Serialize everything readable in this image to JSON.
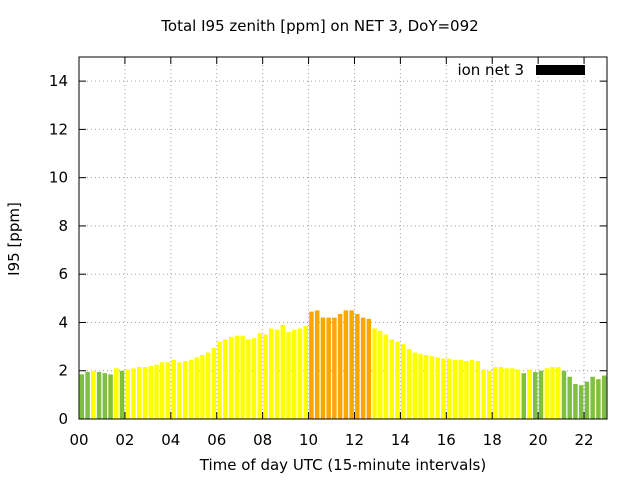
{
  "chart_data": {
    "type": "bar",
    "title": "Total I95 zenith [ppm] on NET 3, DoY=092",
    "xlabel": "Time of day UTC (15-minute intervals)",
    "ylabel": "I95 [ppm]",
    "ylim": [
      0,
      15
    ],
    "xlim": [
      0,
      23
    ],
    "y_ticks": [
      0,
      2,
      4,
      6,
      8,
      10,
      12,
      14
    ],
    "x_ticks": [
      0,
      2,
      4,
      6,
      8,
      10,
      12,
      14,
      16,
      18,
      20,
      22
    ],
    "x_tick_labels": [
      "00",
      "02",
      "04",
      "06",
      "08",
      "10",
      "12",
      "14",
      "16",
      "18",
      "20",
      "22"
    ],
    "grid": true,
    "legend_position": "top-right",
    "series": [
      {
        "name": "ion net 3",
        "color": "#000000",
        "x_start_hour": 0,
        "interval_hours": 0.25,
        "values": [
          1.85,
          1.95,
          2.0,
          1.95,
          1.9,
          1.85,
          2.1,
          2.0,
          2.05,
          2.1,
          2.15,
          2.15,
          2.2,
          2.25,
          2.35,
          2.35,
          2.45,
          2.35,
          2.4,
          2.45,
          2.55,
          2.65,
          2.75,
          2.95,
          3.2,
          3.3,
          3.4,
          3.45,
          3.45,
          3.3,
          3.35,
          3.55,
          3.5,
          3.75,
          3.7,
          3.9,
          3.6,
          3.7,
          3.75,
          3.85,
          4.45,
          4.5,
          4.2,
          4.2,
          4.2,
          4.35,
          4.5,
          4.5,
          4.35,
          4.2,
          4.15,
          3.75,
          3.65,
          3.5,
          3.3,
          3.2,
          3.1,
          2.9,
          2.75,
          2.7,
          2.65,
          2.6,
          2.55,
          2.5,
          2.5,
          2.45,
          2.45,
          2.4,
          2.45,
          2.4,
          2.05,
          2.0,
          2.15,
          2.15,
          2.1,
          2.1,
          2.05,
          1.9,
          2.05,
          1.95,
          2.0,
          2.1,
          2.15,
          2.15,
          2.0,
          1.75,
          1.45,
          1.4,
          1.55,
          1.75,
          1.65,
          1.8
        ],
        "bar_colors": [
          "#80c040",
          "#80c040",
          "#ffff00",
          "#80c040",
          "#80c040",
          "#80c040",
          "#ffff00",
          "#80c040",
          "#ffff00",
          "#ffff00",
          "#ffff00",
          "#ffff00",
          "#ffff00",
          "#ffff00",
          "#ffff00",
          "#ffff00",
          "#ffff00",
          "#ffff00",
          "#ffff00",
          "#ffff00",
          "#ffff00",
          "#ffff00",
          "#ffff00",
          "#ffff00",
          "#ffff00",
          "#ffff00",
          "#ffff00",
          "#ffff00",
          "#ffff00",
          "#ffff00",
          "#ffff00",
          "#ffff00",
          "#ffff00",
          "#ffff00",
          "#ffff00",
          "#ffff00",
          "#ffff00",
          "#ffff00",
          "#ffff00",
          "#ffff00",
          "#ffa500",
          "#ffa500",
          "#ffa500",
          "#ffa500",
          "#ffa500",
          "#ffa500",
          "#ffa500",
          "#ffa500",
          "#ffa500",
          "#ffa500",
          "#ffa500",
          "#ffff00",
          "#ffff00",
          "#ffff00",
          "#ffff00",
          "#ffff00",
          "#ffff00",
          "#ffff00",
          "#ffff00",
          "#ffff00",
          "#ffff00",
          "#ffff00",
          "#ffff00",
          "#ffff00",
          "#ffff00",
          "#ffff00",
          "#ffff00",
          "#ffff00",
          "#ffff00",
          "#ffff00",
          "#ffff00",
          "#ffff00",
          "#ffff00",
          "#ffff00",
          "#ffff00",
          "#ffff00",
          "#ffff00",
          "#80c040",
          "#ffff00",
          "#80c040",
          "#80c040",
          "#ffff00",
          "#ffff00",
          "#ffff00",
          "#80c040",
          "#80c040",
          "#80c040",
          "#80c040",
          "#80c040",
          "#80c040",
          "#80c040",
          "#80c040"
        ]
      }
    ]
  }
}
